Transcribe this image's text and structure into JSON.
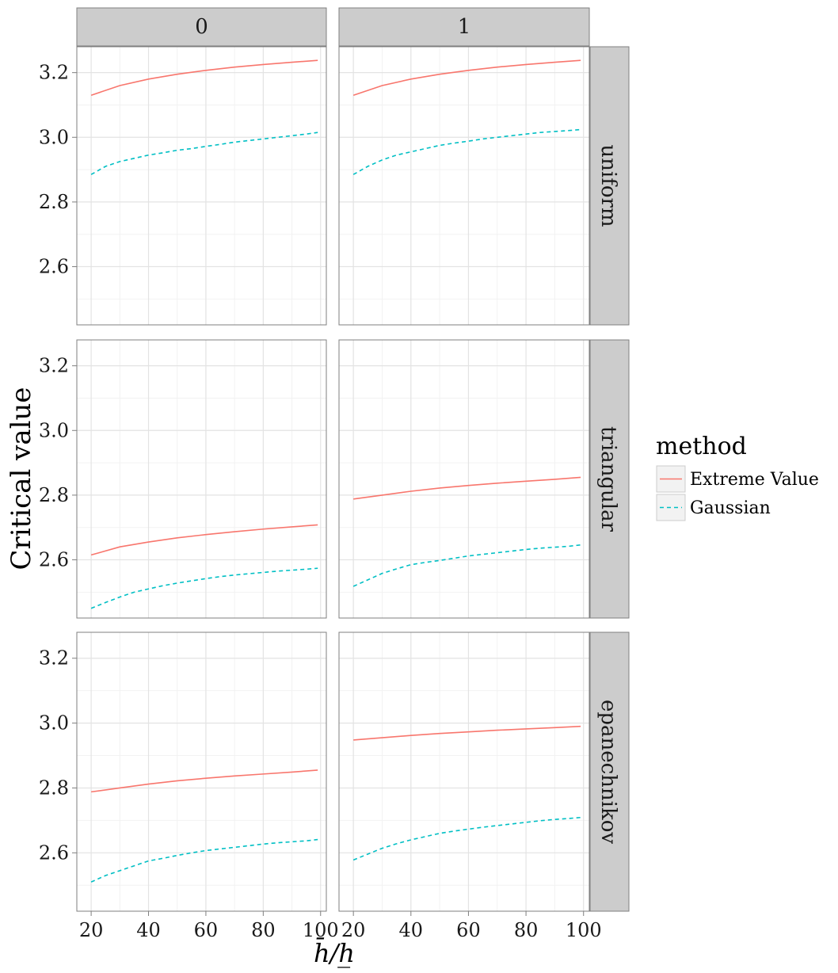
{
  "chart_data": {
    "type": "line",
    "xlabel": "h̄/h̲",
    "ylabel": "Critical value",
    "xlim": [
      15,
      102
    ],
    "ylim": [
      2.42,
      3.28
    ],
    "x_ticks": [
      "20",
      "40",
      "60",
      "80",
      "100"
    ],
    "x_tick_values": [
      20,
      40,
      60,
      80,
      100
    ],
    "y_ticks": [
      "2.6",
      "2.8",
      "3.0",
      "3.2"
    ],
    "y_tick_values": [
      2.6,
      2.8,
      3.0,
      3.2
    ],
    "col_facets": [
      "0",
      "1"
    ],
    "row_facets": [
      "uniform",
      "triangular",
      "epanechnikov"
    ],
    "grid": true,
    "legend": {
      "title": "method",
      "position": "right",
      "entries": [
        {
          "name": "Extreme Value",
          "color": "#F8766D",
          "dash": "solid"
        },
        {
          "name": "Gaussian",
          "color": "#00BFC4",
          "dash": "dashed"
        }
      ]
    },
    "panels": [
      {
        "row": "uniform",
        "col": "0",
        "series": [
          {
            "name": "Extreme Value",
            "x": [
              20,
              30,
              40,
              50,
              60,
              70,
              80,
              90,
              99
            ],
            "values": [
              3.13,
              3.16,
              3.18,
              3.195,
              3.207,
              3.217,
              3.225,
              3.232,
              3.238
            ]
          },
          {
            "name": "Gaussian",
            "x": [
              20,
              25,
              30,
              35,
              40,
              45,
              50,
              55,
              60,
              65,
              70,
              75,
              80,
              85,
              90,
              95,
              99
            ],
            "values": [
              2.885,
              2.91,
              2.925,
              2.935,
              2.945,
              2.952,
              2.96,
              2.965,
              2.972,
              2.978,
              2.985,
              2.99,
              2.995,
              3.0,
              3.005,
              3.01,
              3.015
            ]
          }
        ]
      },
      {
        "row": "uniform",
        "col": "1",
        "series": [
          {
            "name": "Extreme Value",
            "x": [
              20,
              30,
              40,
              50,
              60,
              70,
              80,
              90,
              99
            ],
            "values": [
              3.13,
              3.16,
              3.18,
              3.195,
              3.207,
              3.217,
              3.225,
              3.232,
              3.238
            ]
          },
          {
            "name": "Gaussian",
            "x": [
              20,
              25,
              30,
              35,
              40,
              45,
              50,
              55,
              60,
              65,
              70,
              75,
              80,
              85,
              90,
              95,
              99
            ],
            "values": [
              2.885,
              2.91,
              2.93,
              2.945,
              2.955,
              2.965,
              2.975,
              2.982,
              2.988,
              2.995,
              3.0,
              3.005,
              3.01,
              3.015,
              3.018,
              3.021,
              3.024
            ]
          }
        ]
      },
      {
        "row": "triangular",
        "col": "0",
        "series": [
          {
            "name": "Extreme Value",
            "x": [
              20,
              30,
              40,
              50,
              60,
              70,
              80,
              90,
              99
            ],
            "values": [
              2.615,
              2.64,
              2.655,
              2.668,
              2.678,
              2.687,
              2.695,
              2.702,
              2.708
            ]
          },
          {
            "name": "Gaussian",
            "x": [
              20,
              25,
              30,
              35,
              40,
              45,
              50,
              55,
              60,
              65,
              70,
              75,
              80,
              85,
              90,
              95,
              99
            ],
            "values": [
              2.45,
              2.468,
              2.485,
              2.5,
              2.51,
              2.52,
              2.528,
              2.535,
              2.542,
              2.548,
              2.553,
              2.557,
              2.561,
              2.565,
              2.568,
              2.571,
              2.574
            ]
          }
        ]
      },
      {
        "row": "triangular",
        "col": "1",
        "series": [
          {
            "name": "Extreme Value",
            "x": [
              20,
              30,
              40,
              50,
              60,
              70,
              80,
              90,
              99
            ],
            "values": [
              2.788,
              2.8,
              2.812,
              2.822,
              2.83,
              2.837,
              2.843,
              2.849,
              2.855
            ]
          },
          {
            "name": "Gaussian",
            "x": [
              20,
              25,
              30,
              35,
              40,
              45,
              50,
              55,
              60,
              65,
              70,
              75,
              80,
              85,
              90,
              95,
              99
            ],
            "values": [
              2.518,
              2.538,
              2.558,
              2.572,
              2.585,
              2.592,
              2.598,
              2.605,
              2.612,
              2.617,
              2.622,
              2.627,
              2.632,
              2.636,
              2.639,
              2.642,
              2.646
            ]
          }
        ]
      },
      {
        "row": "epanechnikov",
        "col": "0",
        "series": [
          {
            "name": "Extreme Value",
            "x": [
              20,
              30,
              40,
              50,
              60,
              70,
              80,
              90,
              99
            ],
            "values": [
              2.788,
              2.8,
              2.812,
              2.822,
              2.83,
              2.837,
              2.843,
              2.849,
              2.855
            ]
          },
          {
            "name": "Gaussian",
            "x": [
              20,
              25,
              30,
              35,
              40,
              45,
              50,
              55,
              60,
              65,
              70,
              75,
              80,
              85,
              90,
              95,
              99
            ],
            "values": [
              2.51,
              2.53,
              2.545,
              2.56,
              2.575,
              2.583,
              2.592,
              2.6,
              2.607,
              2.612,
              2.617,
              2.622,
              2.627,
              2.631,
              2.634,
              2.637,
              2.641
            ]
          }
        ]
      },
      {
        "row": "epanechnikov",
        "col": "1",
        "series": [
          {
            "name": "Extreme Value",
            "x": [
              20,
              30,
              40,
              50,
              60,
              70,
              80,
              90,
              99
            ],
            "values": [
              2.948,
              2.955,
              2.962,
              2.968,
              2.973,
              2.978,
              2.982,
              2.986,
              2.99
            ]
          },
          {
            "name": "Gaussian",
            "x": [
              20,
              25,
              30,
              35,
              40,
              45,
              50,
              55,
              60,
              65,
              70,
              75,
              80,
              85,
              90,
              95,
              99
            ],
            "values": [
              2.578,
              2.596,
              2.614,
              2.628,
              2.64,
              2.65,
              2.66,
              2.667,
              2.673,
              2.679,
              2.684,
              2.689,
              2.694,
              2.699,
              2.703,
              2.706,
              2.709
            ]
          }
        ]
      }
    ]
  }
}
